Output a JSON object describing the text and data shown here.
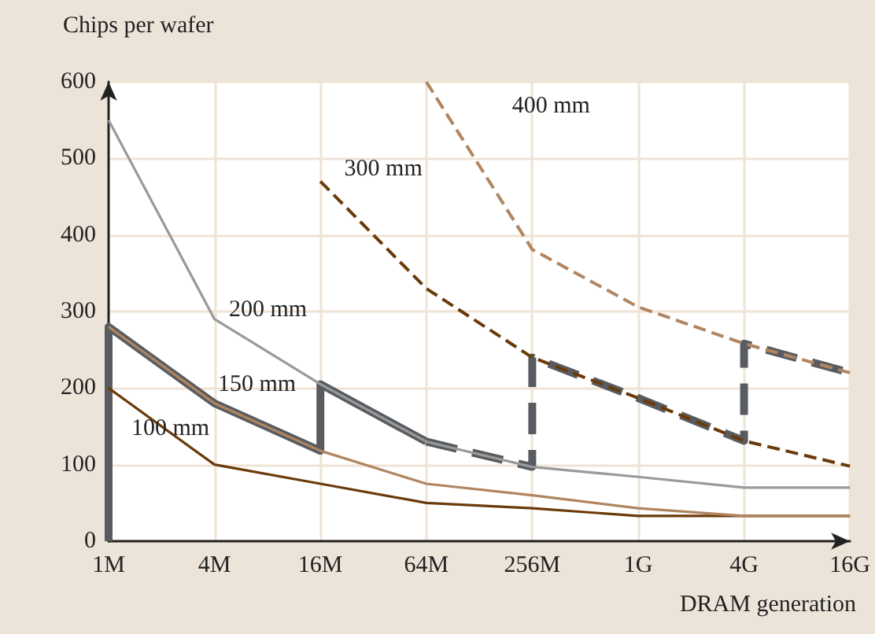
{
  "chart_data": {
    "type": "line",
    "xlabel": "DRAM generation",
    "ylabel": "Chips per wafer",
    "categories": [
      "1M",
      "4M",
      "16M",
      "64M",
      "256M",
      "1G",
      "4G",
      "16G"
    ],
    "series": [
      {
        "name": "100 mm",
        "color": "#6b3a0a",
        "values": [
          200,
          100,
          75,
          50,
          43,
          33,
          33,
          33
        ]
      },
      {
        "name": "150 mm",
        "color": "#b08560",
        "values": [
          280,
          180,
          118,
          75,
          60,
          43,
          33,
          33
        ]
      },
      {
        "name": "200 mm",
        "color": "#9a9a9a",
        "values": [
          550,
          290,
          205,
          130,
          97,
          84,
          70,
          70
        ]
      },
      {
        "name": "300 mm",
        "color": "#6b3a0a",
        "line_style": "dashed",
        "values": [
          null,
          null,
          470,
          330,
          240,
          187,
          131,
          98
        ]
      },
      {
        "name": "400 mm",
        "color": "#b08560",
        "line_style": "dashed",
        "values": [
          null,
          null,
          null,
          600,
          381,
          306,
          258,
          220
        ]
      },
      {
        "color": "#585c60",
        "x": [
          "1M",
          "1M",
          "4M",
          "16M",
          "16M",
          "64M"
        ],
        "values": [
          0,
          280,
          180,
          118,
          205,
          130
        ]
      },
      {
        "color": "#585c60",
        "line_style": "dashed",
        "x": [
          "64M",
          "256M",
          "256M",
          "1G",
          "4G",
          "4G",
          "16G"
        ],
        "values": [
          130,
          97,
          240,
          187,
          131,
          258,
          220
        ]
      }
    ],
    "ylim": [
      0,
      600
    ],
    "yticks": [
      0,
      100,
      200,
      300,
      400,
      500,
      600
    ],
    "grid": true,
    "legend": false,
    "marker": "none",
    "line_style": "solid"
  }
}
